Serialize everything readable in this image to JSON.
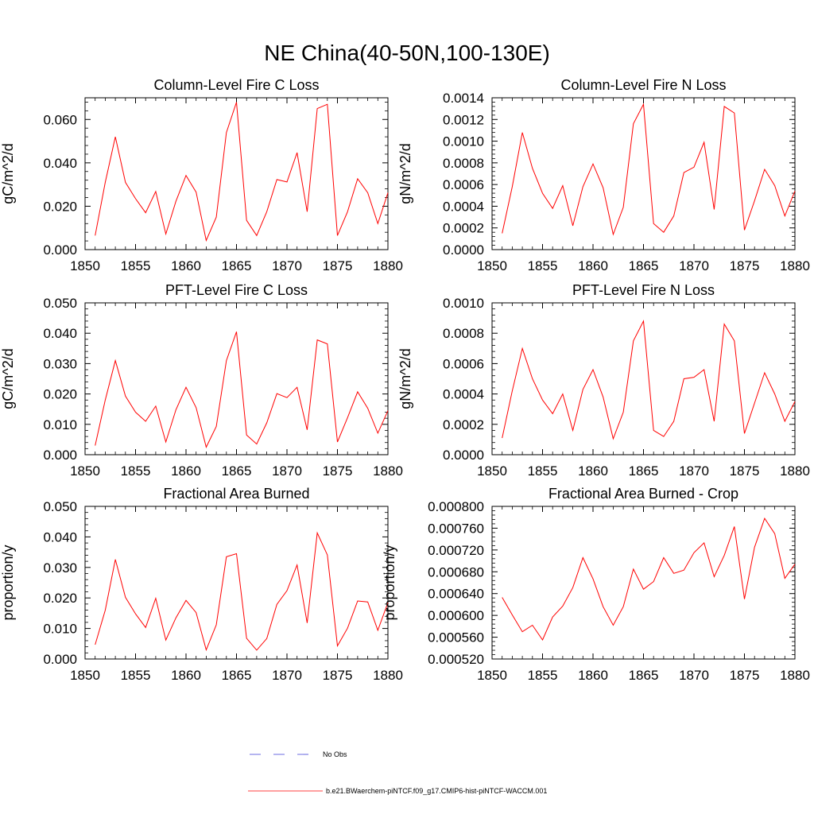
{
  "figure": {
    "title": "NE China(40-50N,100-130E)"
  },
  "legend": {
    "entries": [
      {
        "label": "No Obs",
        "color": "#3b3bd6",
        "dash": "dashed"
      },
      {
        "label": "b.e21.BWaerchem-piNTCF.f09_g17.CMIP6-hist-piNTCF-WACCM.001",
        "color": "#ff0000",
        "dash": "solid"
      }
    ]
  },
  "chart_data": [
    {
      "type": "line",
      "title": "Column-Level Fire C Loss",
      "xlabel": "",
      "ylabel": "gC/m^2/d",
      "xlim": [
        1850,
        1880
      ],
      "ylim": [
        0,
        0.07
      ],
      "xticks": [
        "1850",
        "1855",
        "1860",
        "1865",
        "1870",
        "1875",
        "1880"
      ],
      "yticks": [
        "0.000",
        "0.020",
        "0.040",
        "0.060"
      ],
      "series": [
        {
          "color": "#ff0000",
          "x": [
            1851,
            1852,
            1853,
            1854,
            1855,
            1856,
            1857,
            1858,
            1859,
            1860,
            1861,
            1862,
            1863,
            1864,
            1865,
            1866,
            1867,
            1868,
            1869,
            1870,
            1871,
            1872,
            1873,
            1874,
            1875,
            1876,
            1877,
            1878,
            1879,
            1880
          ],
          "values": [
            0.0065,
            0.031,
            0.052,
            0.031,
            0.0235,
            0.017,
            0.0268,
            0.0072,
            0.0223,
            0.0342,
            0.0265,
            0.0042,
            0.015,
            0.054,
            0.068,
            0.0135,
            0.0065,
            0.0175,
            0.0323,
            0.0312,
            0.0447,
            0.0175,
            0.065,
            0.067,
            0.0065,
            0.0175,
            0.0327,
            0.0262,
            0.012,
            0.0262
          ]
        }
      ]
    },
    {
      "type": "line",
      "title": "Column-Level Fire N Loss",
      "xlabel": "",
      "ylabel": "gN/m^2/d",
      "xlim": [
        1850,
        1880
      ],
      "ylim": [
        0,
        0.0014
      ],
      "xticks": [
        "1850",
        "1855",
        "1860",
        "1865",
        "1870",
        "1875",
        "1880"
      ],
      "yticks": [
        "0.0000",
        "0.0002",
        "0.0004",
        "0.0006",
        "0.0008",
        "0.0010",
        "0.0012",
        "0.0014"
      ],
      "series": [
        {
          "color": "#ff0000",
          "x": [
            1851,
            1852,
            1853,
            1854,
            1855,
            1856,
            1857,
            1858,
            1859,
            1860,
            1861,
            1862,
            1863,
            1864,
            1865,
            1866,
            1867,
            1868,
            1869,
            1870,
            1871,
            1872,
            1873,
            1874,
            1875,
            1876,
            1877,
            1878,
            1879,
            1880
          ],
          "values": [
            0.00015,
            0.00058,
            0.00108,
            0.00075,
            0.00052,
            0.00038,
            0.00059,
            0.00022,
            0.00058,
            0.00079,
            0.00057,
            0.00014,
            0.00039,
            0.00116,
            0.00134,
            0.00024,
            0.00016,
            0.00031,
            0.00071,
            0.00076,
            0.00099,
            0.00037,
            0.00132,
            0.00126,
            0.00018,
            0.00045,
            0.00074,
            0.00059,
            0.00031,
            0.00054
          ]
        }
      ]
    },
    {
      "type": "line",
      "title": "PFT-Level Fire C Loss",
      "xlabel": "",
      "ylabel": "gC/m^2/d",
      "xlim": [
        1850,
        1880
      ],
      "ylim": [
        0,
        0.05
      ],
      "xticks": [
        "1850",
        "1855",
        "1860",
        "1865",
        "1870",
        "1875",
        "1880"
      ],
      "yticks": [
        "0.000",
        "0.010",
        "0.020",
        "0.030",
        "0.040",
        "0.050"
      ],
      "series": [
        {
          "color": "#ff0000",
          "x": [
            1851,
            1852,
            1853,
            1854,
            1855,
            1856,
            1857,
            1858,
            1859,
            1860,
            1861,
            1862,
            1863,
            1864,
            1865,
            1866,
            1867,
            1868,
            1869,
            1870,
            1871,
            1872,
            1873,
            1874,
            1875,
            1876,
            1877,
            1878,
            1879,
            1880
          ],
          "values": [
            0.003,
            0.018,
            0.031,
            0.0193,
            0.014,
            0.011,
            0.016,
            0.0042,
            0.0148,
            0.0222,
            0.0155,
            0.0025,
            0.0093,
            0.031,
            0.0405,
            0.0065,
            0.0035,
            0.0105,
            0.0201,
            0.0188,
            0.0222,
            0.0082,
            0.0378,
            0.0365,
            0.0042,
            0.0122,
            0.0207,
            0.0153,
            0.0071,
            0.0145
          ]
        }
      ]
    },
    {
      "type": "line",
      "title": "PFT-Level Fire N Loss",
      "xlabel": "",
      "ylabel": "gN/m^2/d",
      "xlim": [
        1850,
        1880
      ],
      "ylim": [
        0,
        0.001
      ],
      "xticks": [
        "1850",
        "1855",
        "1860",
        "1865",
        "1870",
        "1875",
        "1880"
      ],
      "yticks": [
        "0.0000",
        "0.0002",
        "0.0004",
        "0.0006",
        "0.0008",
        "0.0010"
      ],
      "series": [
        {
          "color": "#ff0000",
          "x": [
            1851,
            1852,
            1853,
            1854,
            1855,
            1856,
            1857,
            1858,
            1859,
            1860,
            1861,
            1862,
            1863,
            1864,
            1865,
            1866,
            1867,
            1868,
            1869,
            1870,
            1871,
            1872,
            1873,
            1874,
            1875,
            1876,
            1877,
            1878,
            1879,
            1880
          ],
          "values": [
            0.00011,
            0.00042,
            0.0007,
            0.0005,
            0.00036,
            0.00027,
            0.0004,
            0.00016,
            0.00043,
            0.00056,
            0.00038,
            0.000105,
            0.00028,
            0.00075,
            0.00088,
            0.00016,
            0.00012,
            0.00022,
            0.0005,
            0.00051,
            0.00056,
            0.00022,
            0.00086,
            0.00075,
            0.00014,
            0.00034,
            0.00054,
            0.0004,
            0.00022,
            0.00035
          ]
        }
      ]
    },
    {
      "type": "line",
      "title": "Fractional Area Burned",
      "xlabel": "",
      "ylabel": "proportion/y",
      "xlim": [
        1850,
        1880
      ],
      "ylim": [
        0,
        0.05
      ],
      "xticks": [
        "1850",
        "1855",
        "1860",
        "1865",
        "1870",
        "1875",
        "1880"
      ],
      "yticks": [
        "0.000",
        "0.010",
        "0.020",
        "0.030",
        "0.040",
        "0.050"
      ],
      "series": [
        {
          "color": "#ff0000",
          "x": [
            1851,
            1852,
            1853,
            1854,
            1855,
            1856,
            1857,
            1858,
            1859,
            1860,
            1861,
            1862,
            1863,
            1864,
            1865,
            1866,
            1867,
            1868,
            1869,
            1870,
            1871,
            1872,
            1873,
            1874,
            1875,
            1876,
            1877,
            1878,
            1879,
            1880
          ],
          "values": [
            0.0047,
            0.016,
            0.0326,
            0.0202,
            0.0148,
            0.0103,
            0.0199,
            0.0062,
            0.0135,
            0.0192,
            0.0152,
            0.003,
            0.0112,
            0.0335,
            0.0345,
            0.0068,
            0.0029,
            0.0067,
            0.0179,
            0.0224,
            0.0308,
            0.0118,
            0.0413,
            0.0341,
            0.0043,
            0.0101,
            0.019,
            0.0187,
            0.0094,
            0.0185
          ]
        }
      ]
    },
    {
      "type": "line",
      "title": "Fractional Area Burned - Crop",
      "xlabel": "",
      "ylabel": "proportion/y",
      "xlim": [
        1850,
        1880
      ],
      "ylim": [
        0.00052,
        0.0008
      ],
      "xticks": [
        "1850",
        "1855",
        "1860",
        "1865",
        "1870",
        "1875",
        "1880"
      ],
      "yticks": [
        "0.000520",
        "0.000560",
        "0.000600",
        "0.000640",
        "0.000680",
        "0.000720",
        "0.000760",
        "0.000800"
      ],
      "series": [
        {
          "color": "#ff0000",
          "x": [
            1851,
            1852,
            1853,
            1854,
            1855,
            1856,
            1857,
            1858,
            1859,
            1860,
            1861,
            1862,
            1863,
            1864,
            1865,
            1866,
            1867,
            1868,
            1869,
            1870,
            1871,
            1872,
            1873,
            1874,
            1875,
            1876,
            1877,
            1878,
            1879,
            1880
          ],
          "values": [
            0.000633,
            0.000601,
            0.00057,
            0.000582,
            0.000555,
            0.000597,
            0.000617,
            0.000651,
            0.000706,
            0.000667,
            0.000616,
            0.000582,
            0.000616,
            0.000685,
            0.000648,
            0.000662,
            0.000706,
            0.000677,
            0.000683,
            0.000715,
            0.000733,
            0.000671,
            0.00071,
            0.000763,
            0.00063,
            0.000725,
            0.000778,
            0.00075,
            0.000668,
            0.000694
          ]
        }
      ]
    }
  ]
}
